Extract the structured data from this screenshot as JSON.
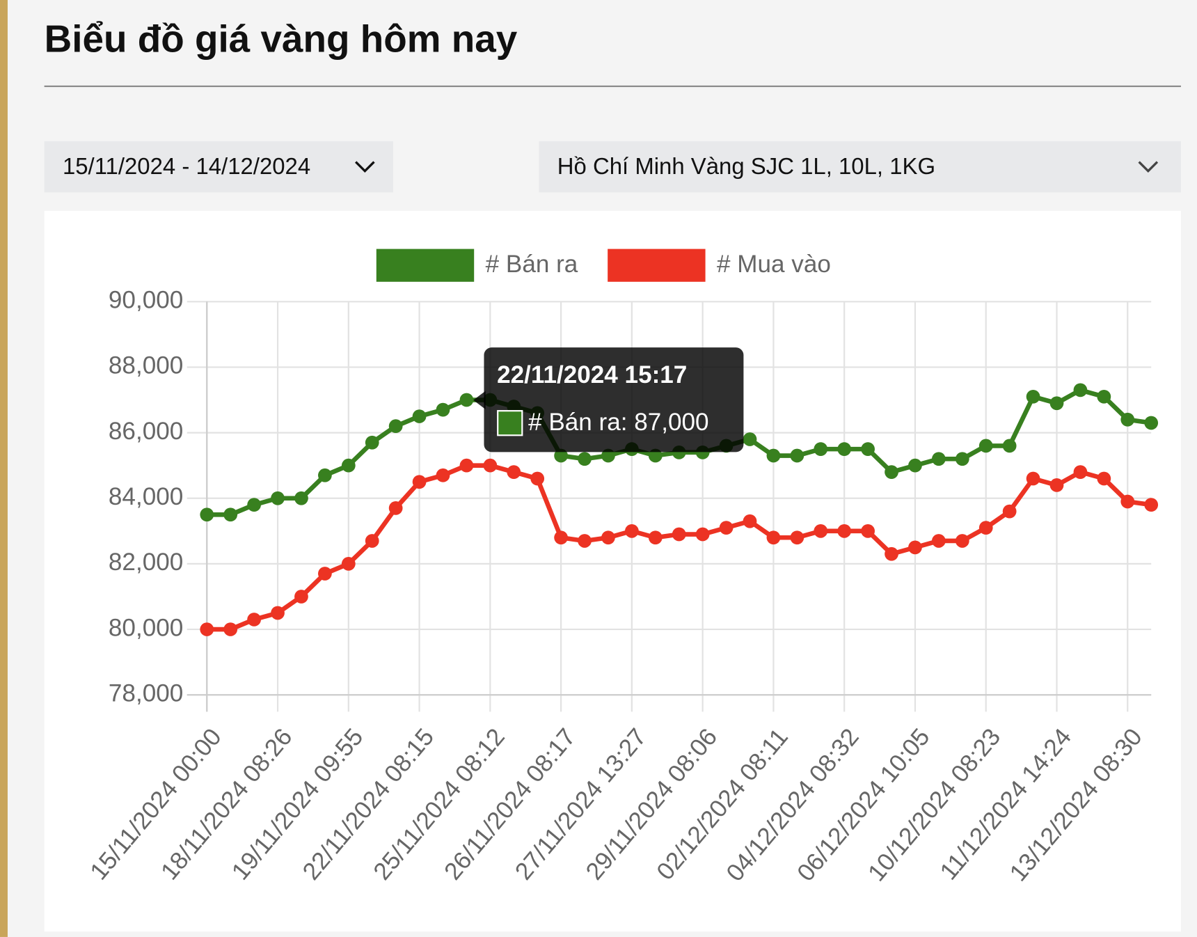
{
  "header": {
    "title": "Biểu đồ giá vàng hôm nay"
  },
  "filters": {
    "date_range": "15/11/2024 - 14/12/2024",
    "location": "Hồ Chí Minh Vàng SJC 1L, 10L, 1KG"
  },
  "chart_data": {
    "type": "line",
    "categories": [
      "15/11/2024 00:00",
      null,
      null,
      "18/11/2024 08:26",
      null,
      null,
      "19/11/2024 09:55",
      null,
      null,
      "22/11/2024 08:15",
      null,
      null,
      "25/11/2024 08:12",
      null,
      null,
      "26/11/2024 08:17",
      null,
      null,
      "27/11/2024 13:27",
      null,
      null,
      "29/11/2024 08:06",
      null,
      null,
      "02/12/2024 08:11",
      null,
      null,
      "04/12/2024 08:32",
      null,
      null,
      "06/12/2024 10:05",
      null,
      null,
      "10/12/2024 08:23",
      null,
      null,
      "11/12/2024 14:24",
      null,
      null,
      "13/12/2024 08:30",
      null
    ],
    "series": [
      {
        "name": "# Bán ra",
        "color": "#38801f",
        "values": [
          83500,
          83500,
          83800,
          84000,
          84000,
          84700,
          85000,
          85700,
          86200,
          86500,
          86700,
          87000,
          87000,
          86800,
          86600,
          85300,
          85200,
          85300,
          85500,
          85300,
          85400,
          85400,
          85600,
          85800,
          85300,
          85300,
          85500,
          85500,
          85500,
          84800,
          85000,
          85200,
          85200,
          85600,
          85600,
          87100,
          86900,
          87300,
          87100,
          86400,
          86300
        ]
      },
      {
        "name": "# Mua vào",
        "color": "#ec3323",
        "values": [
          80000,
          80000,
          80300,
          80500,
          81000,
          81700,
          82000,
          82700,
          83700,
          84500,
          84700,
          85000,
          85000,
          84800,
          84600,
          82800,
          82700,
          82800,
          83000,
          82800,
          82900,
          82900,
          83100,
          83300,
          82800,
          82800,
          83000,
          83000,
          83000,
          82300,
          82500,
          82700,
          82700,
          83100,
          83600,
          84600,
          84400,
          84800,
          84600,
          83900,
          83800
        ]
      }
    ],
    "ylim": [
      78000,
      90000
    ],
    "yticks": [
      {
        "value": 78000,
        "label": "78,000"
      },
      {
        "value": 80000,
        "label": "80,000"
      },
      {
        "value": 82000,
        "label": "82,000"
      },
      {
        "value": 84000,
        "label": "84,000"
      },
      {
        "value": 86000,
        "label": "86,000"
      },
      {
        "value": 88000,
        "label": "88,000"
      },
      {
        "value": 90000,
        "label": "90,000"
      }
    ],
    "grid": true,
    "legend": "top",
    "tooltip": {
      "title": "22/11/2024 15:17",
      "label": "# Bán ra: 87,000"
    }
  }
}
